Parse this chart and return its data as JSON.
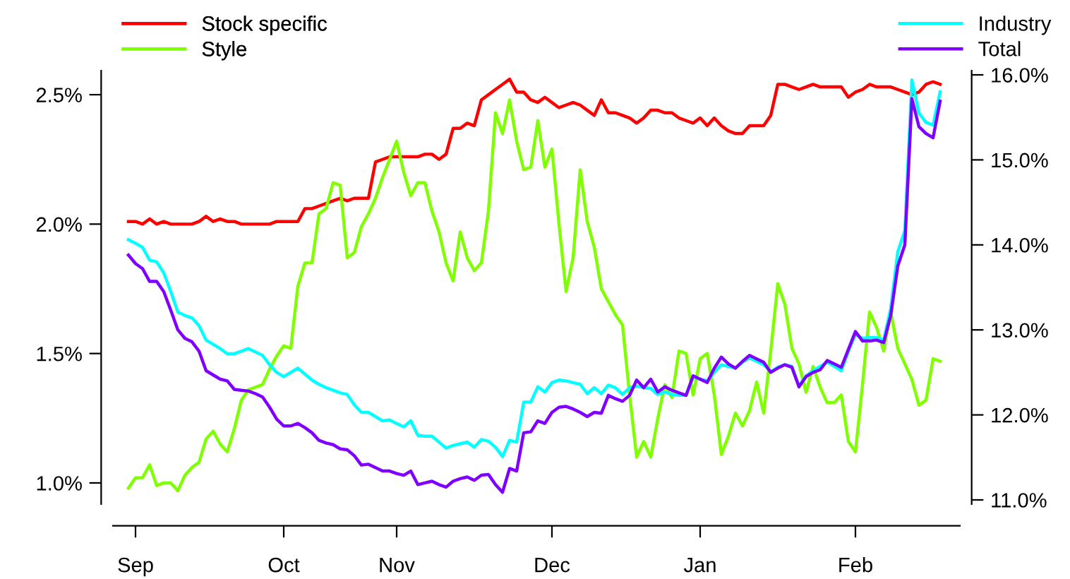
{
  "chart_data": {
    "type": "line",
    "categories": [
      null,
      "Sep",
      null,
      null,
      null,
      null,
      null,
      null,
      null,
      null,
      null,
      null,
      null,
      null,
      null,
      null,
      null,
      null,
      null,
      null,
      null,
      null,
      "Oct",
      null,
      null,
      null,
      null,
      null,
      null,
      null,
      null,
      null,
      null,
      null,
      null,
      null,
      null,
      null,
      "Nov",
      null,
      null,
      null,
      null,
      null,
      null,
      null,
      null,
      null,
      null,
      null,
      null,
      null,
      null,
      null,
      null,
      null,
      null,
      null,
      null,
      null,
      "Dec",
      null,
      null,
      null,
      null,
      null,
      null,
      null,
      null,
      null,
      null,
      null,
      null,
      null,
      null,
      null,
      null,
      null,
      null,
      null,
      null,
      "Jan",
      null,
      null,
      null,
      null,
      null,
      null,
      null,
      null,
      null,
      null,
      null,
      null,
      null,
      null,
      null,
      null,
      null,
      null,
      null,
      null,
      null,
      "Feb",
      null,
      null,
      null,
      null,
      null,
      null,
      null,
      null,
      null,
      null,
      null,
      null
    ],
    "ylim": [
      0.918,
      2.593
    ],
    "yticks": [
      {
        "value": 1.0,
        "label": "1.0%"
      },
      {
        "value": 1.5,
        "label": "1.5%"
      },
      {
        "value": 2.0,
        "label": "2.0%"
      },
      {
        "value": 2.5,
        "label": "2.5%"
      }
    ],
    "y2lim": [
      10.95,
      16.05
    ],
    "y2ticks": [
      {
        "value": 11,
        "label": "11.0%"
      },
      {
        "value": 12,
        "label": "12.0%"
      },
      {
        "value": 13,
        "label": "13.0%"
      },
      {
        "value": 14,
        "label": "14.0%"
      },
      {
        "value": 15,
        "label": "15.0%"
      },
      {
        "value": 16,
        "label": "16.0%"
      }
    ],
    "grid": false,
    "legend": "top",
    "marker": "none",
    "line_style": "solid",
    "series": [
      {
        "name": "Stock specific",
        "color": "#ff0000",
        "axis": "y",
        "values": [
          2.01,
          2.01,
          2.0,
          2.02,
          2.0,
          2.01,
          2.0,
          2.0,
          2.0,
          2.0,
          2.01,
          2.03,
          2.01,
          2.02,
          2.01,
          2.01,
          2.0,
          2.0,
          2.0,
          2.0,
          2.0,
          2.01,
          2.01,
          2.01,
          2.01,
          2.06,
          2.06,
          2.07,
          2.08,
          2.09,
          2.1,
          2.09,
          2.1,
          2.1,
          2.1,
          2.24,
          2.25,
          2.26,
          2.26,
          2.26,
          2.26,
          2.26,
          2.27,
          2.27,
          2.25,
          2.27,
          2.37,
          2.37,
          2.39,
          2.38,
          2.48,
          2.5,
          2.52,
          2.54,
          2.56,
          2.51,
          2.51,
          2.48,
          2.47,
          2.49,
          2.47,
          2.45,
          2.46,
          2.47,
          2.46,
          2.44,
          2.42,
          2.48,
          2.43,
          2.43,
          2.42,
          2.41,
          2.39,
          2.41,
          2.44,
          2.44,
          2.43,
          2.43,
          2.41,
          2.4,
          2.39,
          2.41,
          2.38,
          2.41,
          2.38,
          2.36,
          2.35,
          2.35,
          2.38,
          2.38,
          2.38,
          2.42,
          2.54,
          2.54,
          2.53,
          2.52,
          2.53,
          2.54,
          2.53,
          2.53,
          2.53,
          2.53,
          2.49,
          2.51,
          2.52,
          2.54,
          2.53,
          2.53,
          2.53,
          2.52,
          2.51,
          2.5,
          2.51,
          2.54,
          2.55,
          2.54
        ]
      },
      {
        "name": "Style",
        "color": "#7fff00",
        "axis": "y",
        "values": [
          0.98,
          1.02,
          1.02,
          1.07,
          0.99,
          1.0,
          1.0,
          0.97,
          1.03,
          1.06,
          1.08,
          1.17,
          1.2,
          1.15,
          1.12,
          1.21,
          1.32,
          1.36,
          1.37,
          1.38,
          1.44,
          1.49,
          1.53,
          1.52,
          1.76,
          1.85,
          1.85,
          2.04,
          2.06,
          2.16,
          2.15,
          1.87,
          1.89,
          1.99,
          2.04,
          2.1,
          2.18,
          2.25,
          2.32,
          2.2,
          2.11,
          2.16,
          2.16,
          2.05,
          1.97,
          1.85,
          1.78,
          1.97,
          1.87,
          1.82,
          1.85,
          2.05,
          2.43,
          2.35,
          2.48,
          2.32,
          2.21,
          2.22,
          2.4,
          2.22,
          2.29,
          2.0,
          1.74,
          1.87,
          2.21,
          2.01,
          1.91,
          1.75,
          1.7,
          1.65,
          1.61,
          1.34,
          1.1,
          1.16,
          1.1,
          1.25,
          1.38,
          1.33,
          1.51,
          1.5,
          1.34,
          1.48,
          1.5,
          1.34,
          1.11,
          1.18,
          1.27,
          1.22,
          1.28,
          1.39,
          1.27,
          1.51,
          1.77,
          1.69,
          1.52,
          1.46,
          1.35,
          1.45,
          1.37,
          1.31,
          1.31,
          1.34,
          1.16,
          1.12,
          1.38,
          1.66,
          1.6,
          1.51,
          1.66,
          1.52,
          1.46,
          1.4,
          1.3,
          1.32,
          1.48,
          1.47
        ]
      },
      {
        "name": "Industry",
        "color": "#00ffff",
        "axis": "y2",
        "values": [
          14.06,
          14.02,
          13.97,
          13.82,
          13.8,
          13.67,
          13.45,
          13.21,
          13.17,
          13.14,
          13.05,
          12.88,
          12.83,
          12.78,
          12.72,
          12.72,
          12.75,
          12.78,
          12.74,
          12.7,
          12.59,
          12.5,
          12.45,
          12.5,
          12.55,
          12.48,
          12.41,
          12.36,
          12.32,
          12.29,
          12.26,
          12.24,
          12.12,
          12.03,
          12.03,
          11.98,
          11.93,
          11.94,
          11.9,
          11.86,
          11.93,
          11.76,
          11.75,
          11.75,
          11.68,
          11.61,
          11.64,
          11.66,
          11.68,
          11.62,
          11.71,
          11.69,
          11.62,
          11.51,
          11.7,
          11.68,
          12.15,
          12.15,
          12.33,
          12.27,
          12.38,
          12.41,
          12.4,
          12.38,
          12.36,
          12.25,
          12.32,
          12.25,
          12.35,
          12.32,
          12.24,
          12.32,
          12.34,
          12.32,
          12.31,
          12.24,
          12.27,
          12.24,
          12.23,
          12.23,
          12.45,
          12.42,
          12.4,
          12.5,
          12.59,
          12.57,
          12.55,
          12.62,
          12.67,
          12.63,
          12.59,
          12.51,
          12.56,
          12.59,
          12.57,
          12.34,
          12.46,
          12.52,
          12.57,
          12.62,
          12.57,
          12.52,
          12.75,
          12.95,
          12.9,
          12.91,
          12.91,
          12.88,
          13.25,
          13.92,
          14.17,
          15.94,
          15.55,
          15.44,
          15.41,
          15.8
        ]
      },
      {
        "name": "Total",
        "color": "#8000ff",
        "axis": "y2",
        "values": [
          13.88,
          13.78,
          13.72,
          13.57,
          13.57,
          13.45,
          13.23,
          13.0,
          12.9,
          12.86,
          12.75,
          12.52,
          12.47,
          12.42,
          12.4,
          12.3,
          12.29,
          12.28,
          12.25,
          12.21,
          12.09,
          11.95,
          11.87,
          11.87,
          11.9,
          11.85,
          11.79,
          11.7,
          11.67,
          11.65,
          11.6,
          11.59,
          11.52,
          11.41,
          11.42,
          11.38,
          11.34,
          11.34,
          11.31,
          11.29,
          11.34,
          11.18,
          11.2,
          11.22,
          11.18,
          11.15,
          11.22,
          11.25,
          11.27,
          11.23,
          11.29,
          11.3,
          11.18,
          11.09,
          11.37,
          11.34,
          11.79,
          11.8,
          11.93,
          11.9,
          12.03,
          12.09,
          12.1,
          12.07,
          12.03,
          11.98,
          12.03,
          12.02,
          12.23,
          12.19,
          12.16,
          12.23,
          12.41,
          12.32,
          12.42,
          12.27,
          12.33,
          12.29,
          12.26,
          12.23,
          12.46,
          12.42,
          12.38,
          12.55,
          12.68,
          12.6,
          12.55,
          12.63,
          12.7,
          12.66,
          12.62,
          12.5,
          12.55,
          12.59,
          12.56,
          12.33,
          12.45,
          12.5,
          12.53,
          12.64,
          12.6,
          12.56,
          12.77,
          12.98,
          12.87,
          12.87,
          12.88,
          12.85,
          13.17,
          13.75,
          14.0,
          15.72,
          15.39,
          15.31,
          15.26,
          15.69
        ]
      }
    ]
  }
}
